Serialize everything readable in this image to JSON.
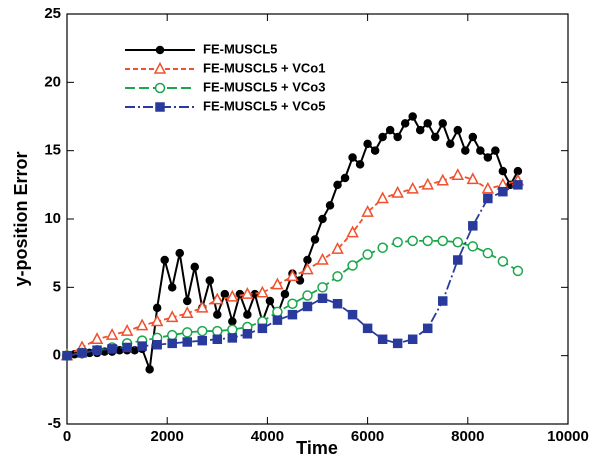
{
  "chart_data": {
    "type": "line",
    "xlabel": "Time",
    "ylabel": "y-position Error",
    "xlim": [
      0,
      10000
    ],
    "xticks": [
      0,
      2000,
      4000,
      6000,
      8000,
      10000
    ],
    "ylim": [
      -5,
      25
    ],
    "yticks": [
      -5,
      0,
      5,
      10,
      15,
      20,
      25
    ],
    "legend": "upper left",
    "series": [
      {
        "name": "FE-MUSCL5",
        "color": "#000000",
        "marker": "filled-circle",
        "dash": "solid",
        "x": [
          0,
          150,
          300,
          450,
          600,
          750,
          900,
          1050,
          1200,
          1350,
          1500,
          1650,
          1800,
          1950,
          2100,
          2250,
          2400,
          2550,
          2700,
          2850,
          3000,
          3150,
          3300,
          3450,
          3600,
          3750,
          3900,
          4050,
          4200,
          4350,
          4500,
          4650,
          4800,
          4950,
          5100,
          5250,
          5400,
          5550,
          5700,
          5850,
          6000,
          6150,
          6300,
          6450,
          6600,
          6750,
          6900,
          7050,
          7200,
          7350,
          7500,
          7650,
          7800,
          7950,
          8100,
          8250,
          8400,
          8550,
          8700,
          8850,
          9000
        ],
        "values": [
          0,
          0.1,
          0.1,
          0.2,
          0.2,
          0.3,
          0.3,
          0.4,
          0.4,
          0.4,
          0.5,
          -1,
          3.5,
          7,
          5,
          7.5,
          4,
          6.5,
          3.5,
          5.5,
          3,
          4.5,
          2.5,
          4.5,
          3,
          4.5,
          2.5,
          4,
          3,
          4.5,
          6,
          5.5,
          7,
          8.5,
          10,
          11,
          12.5,
          13,
          14.5,
          14,
          15.5,
          15,
          16,
          16.5,
          16,
          17,
          17.5,
          16.5,
          17,
          16,
          17,
          15.5,
          16.5,
          15,
          16,
          15,
          14.5,
          15,
          13.5,
          12.5,
          13.5
        ]
      },
      {
        "name": "FE-MUSCL5 + VCo1",
        "color": "#f0502d",
        "marker": "open-triangle",
        "dash": "dashed",
        "x": [
          0,
          300,
          600,
          900,
          1200,
          1500,
          1800,
          2100,
          2400,
          2700,
          3000,
          3300,
          3600,
          3900,
          4200,
          4500,
          4800,
          5100,
          5400,
          5700,
          6000,
          6300,
          6600,
          6900,
          7200,
          7500,
          7800,
          8100,
          8400,
          8700,
          9000
        ],
        "values": [
          0,
          0.6,
          1.2,
          1.5,
          1.8,
          2.2,
          2.5,
          2.8,
          3.1,
          3.5,
          4.1,
          4.3,
          4.5,
          4.6,
          5.2,
          5.8,
          6.3,
          7.0,
          7.8,
          9.0,
          10.5,
          11.5,
          11.9,
          12.2,
          12.5,
          12.8,
          13.2,
          12.9,
          12.2,
          12.5,
          12.8
        ]
      },
      {
        "name": "FE-MUSCL5 + VCo3",
        "color": "#1aa64a",
        "marker": "open-circle",
        "dash": "longdash",
        "x": [
          0,
          300,
          600,
          900,
          1200,
          1500,
          1800,
          2100,
          2400,
          2700,
          3000,
          3300,
          3600,
          3900,
          4200,
          4500,
          4800,
          5100,
          5400,
          5700,
          6000,
          6300,
          6600,
          6900,
          7200,
          7500,
          7800,
          8100,
          8400,
          8700,
          9000
        ],
        "values": [
          0,
          0.2,
          0.4,
          0.6,
          0.9,
          1.1,
          1.3,
          1.5,
          1.7,
          1.8,
          1.8,
          1.9,
          2.1,
          2.5,
          3.2,
          3.8,
          4.4,
          5.0,
          5.8,
          6.6,
          7.4,
          7.9,
          8.3,
          8.4,
          8.4,
          8.4,
          8.3,
          8.0,
          7.5,
          6.9,
          6.2
        ]
      },
      {
        "name": "FE-MUSCL5 + VCo5",
        "color": "#2a3a9c",
        "marker": "filled-square",
        "dash": "dashdot",
        "x": [
          0,
          300,
          600,
          900,
          1200,
          1500,
          1800,
          2100,
          2400,
          2700,
          3000,
          3300,
          3600,
          3900,
          4200,
          4500,
          4800,
          5100,
          5400,
          5700,
          6000,
          6300,
          6600,
          6900,
          7200,
          7500,
          7800,
          8100,
          8400,
          8700,
          9000
        ],
        "values": [
          0,
          0.2,
          0.4,
          0.5,
          0.6,
          0.7,
          0.8,
          0.9,
          1.0,
          1.1,
          1.2,
          1.3,
          1.6,
          2.0,
          2.6,
          3.0,
          3.6,
          4.2,
          3.8,
          3.0,
          2.0,
          1.2,
          0.9,
          1.2,
          2.0,
          4.0,
          7.0,
          9.5,
          11.5,
          12.0,
          12.5
        ]
      }
    ]
  }
}
